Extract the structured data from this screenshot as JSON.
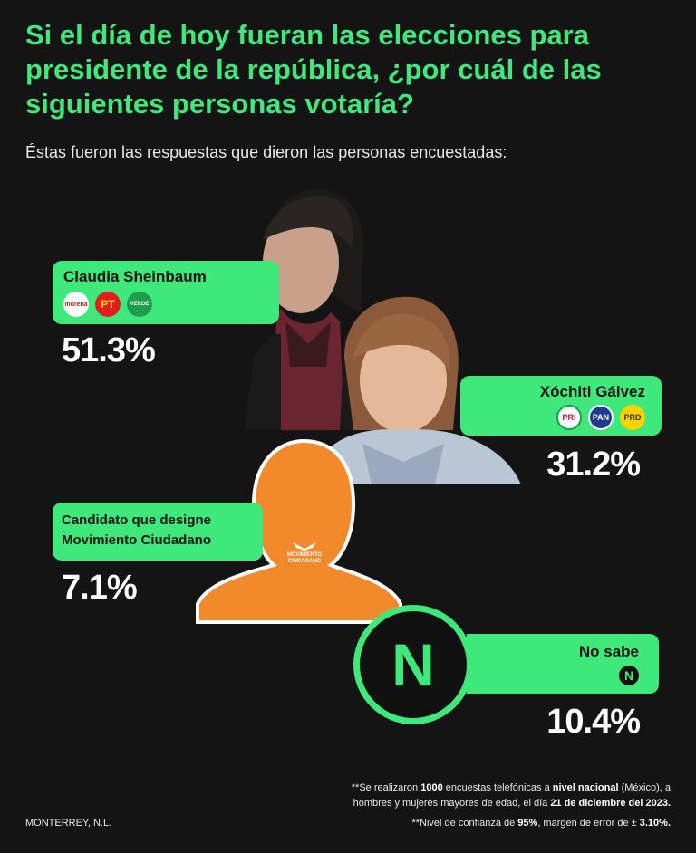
{
  "title": "Si el día de hoy fueran las elecciones para presidente de la república, ¿por cuál de las siguientes personas votaría?",
  "subtitle": "Éstas fueron las respuestas que dieron las personas encuestadas:",
  "colors": {
    "accent": "#3ee87a",
    "background": "#141414",
    "mc_orange": "#f2892b"
  },
  "chart_data": {
    "type": "bar",
    "categories": [
      "Claudia Sheinbaum",
      "Xóchitl Gálvez",
      "Candidato que designe Movimiento Ciudadano",
      "No sabe"
    ],
    "values": [
      51.3,
      31.2,
      7.1,
      10.4
    ],
    "value_labels": [
      "51.3%",
      "31.2%",
      "7.1%",
      "10.4%"
    ]
  },
  "candidates": {
    "sheinbaum": {
      "name": "Claudia Sheinbaum",
      "parties": [
        "morena",
        "PT",
        "VERDE"
      ]
    },
    "galvez": {
      "name": "Xóchitl Gálvez",
      "parties": [
        "PRI",
        "PAN",
        "PRD"
      ]
    },
    "mc": {
      "name_line1": "Candidato que designe",
      "name_line2": "Movimiento Ciudadano",
      "badge_line1": "MOVIMIENTO",
      "badge_line2": "CIUDADANO"
    },
    "nosabe": {
      "name": "No sabe",
      "badge": "N",
      "big_badge": "N"
    }
  },
  "footer": {
    "location": "MONTERREY, N.L.",
    "note1_pre": "**Se realizaron ",
    "note1_num": "1000",
    "note1_mid": " encuestas telefónicas a ",
    "note1_bold": "nivel nacional",
    "note1_post": " (México), a",
    "note2_pre": "hombres y mujeres mayores de edad, el día ",
    "note2_bold": "21 de diciembre del 2023.",
    "note3_pre": "**Nivel de confianza de ",
    "note3_b1": "95%",
    "note3_mid": ", margen de error de ± ",
    "note3_b2": "3.10%."
  }
}
